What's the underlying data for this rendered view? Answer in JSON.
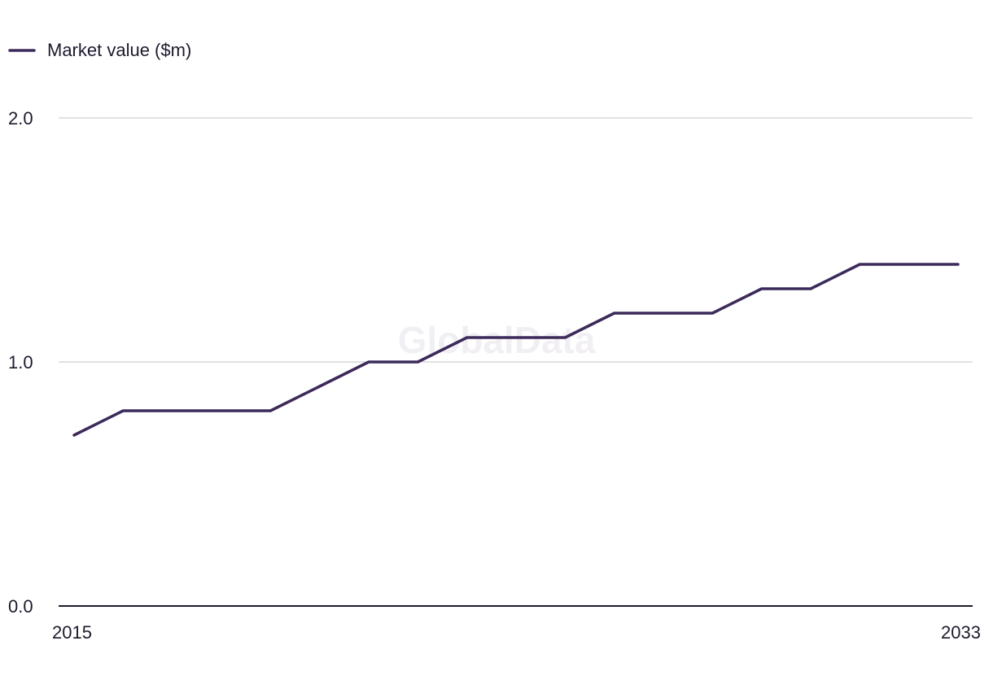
{
  "chart_data": {
    "type": "line",
    "title": "",
    "xlabel": "",
    "ylabel": "",
    "x": [
      2015,
      2016,
      2017,
      2018,
      2019,
      2020,
      2021,
      2022,
      2023,
      2024,
      2025,
      2026,
      2027,
      2028,
      2029,
      2030,
      2031,
      2032,
      2033
    ],
    "x_tick_labels": [
      "2015",
      "2033"
    ],
    "y_ticks": [
      0.0,
      1.0,
      2.0
    ],
    "y_tick_labels": [
      "0.0",
      "1.0",
      "2.0"
    ],
    "ylim": [
      0.0,
      2.0
    ],
    "grid": true,
    "legend_position": "top-left",
    "series": [
      {
        "name": "Market value ($m)",
        "color": "#3b2a5a",
        "values": [
          0.7,
          0.8,
          0.8,
          0.8,
          0.8,
          0.9,
          1.0,
          1.0,
          1.1,
          1.1,
          1.1,
          1.2,
          1.2,
          1.2,
          1.3,
          1.3,
          1.4,
          1.4,
          1.4
        ]
      }
    ]
  },
  "watermark": "GlobalData",
  "colors": {
    "grid": "#d9d9de",
    "axis": "#1e1a2e",
    "text": "#1e1a2e"
  }
}
